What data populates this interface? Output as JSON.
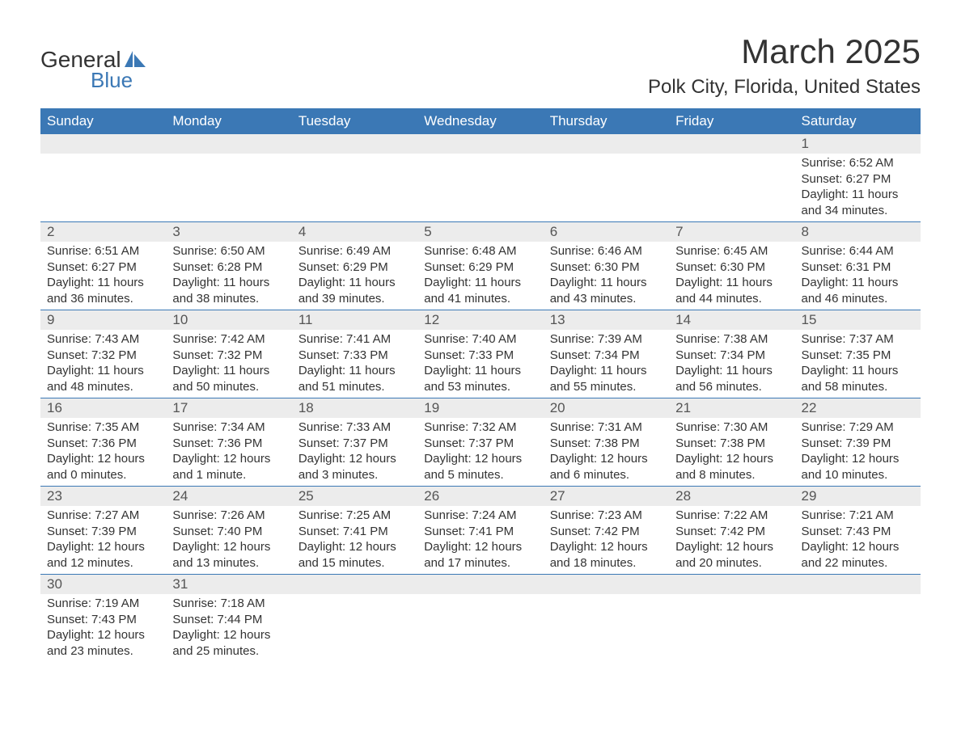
{
  "logo": {
    "text1": "General",
    "text2": "Blue",
    "sail_color": "#3b78b5"
  },
  "title": "March 2025",
  "location": "Polk City, Florida, United States",
  "colors": {
    "header_bg": "#3b78b5",
    "header_text": "#ffffff",
    "daynum_bg": "#ececec",
    "row_divider": "#3b78b5",
    "body_text": "#333333"
  },
  "font": {
    "family": "Arial",
    "header_size_pt": 13,
    "title_size_pt": 32,
    "cell_size_pt": 11
  },
  "weekdays": [
    "Sunday",
    "Monday",
    "Tuesday",
    "Wednesday",
    "Thursday",
    "Friday",
    "Saturday"
  ],
  "weeks": [
    {
      "nums": [
        "",
        "",
        "",
        "",
        "",
        "",
        "1"
      ],
      "cells": [
        "",
        "",
        "",
        "",
        "",
        "",
        "Sunrise: 6:52 AM\nSunset: 6:27 PM\nDaylight: 11 hours and 34 minutes."
      ]
    },
    {
      "nums": [
        "2",
        "3",
        "4",
        "5",
        "6",
        "7",
        "8"
      ],
      "cells": [
        "Sunrise: 6:51 AM\nSunset: 6:27 PM\nDaylight: 11 hours and 36 minutes.",
        "Sunrise: 6:50 AM\nSunset: 6:28 PM\nDaylight: 11 hours and 38 minutes.",
        "Sunrise: 6:49 AM\nSunset: 6:29 PM\nDaylight: 11 hours and 39 minutes.",
        "Sunrise: 6:48 AM\nSunset: 6:29 PM\nDaylight: 11 hours and 41 minutes.",
        "Sunrise: 6:46 AM\nSunset: 6:30 PM\nDaylight: 11 hours and 43 minutes.",
        "Sunrise: 6:45 AM\nSunset: 6:30 PM\nDaylight: 11 hours and 44 minutes.",
        "Sunrise: 6:44 AM\nSunset: 6:31 PM\nDaylight: 11 hours and 46 minutes."
      ]
    },
    {
      "nums": [
        "9",
        "10",
        "11",
        "12",
        "13",
        "14",
        "15"
      ],
      "cells": [
        "Sunrise: 7:43 AM\nSunset: 7:32 PM\nDaylight: 11 hours and 48 minutes.",
        "Sunrise: 7:42 AM\nSunset: 7:32 PM\nDaylight: 11 hours and 50 minutes.",
        "Sunrise: 7:41 AM\nSunset: 7:33 PM\nDaylight: 11 hours and 51 minutes.",
        "Sunrise: 7:40 AM\nSunset: 7:33 PM\nDaylight: 11 hours and 53 minutes.",
        "Sunrise: 7:39 AM\nSunset: 7:34 PM\nDaylight: 11 hours and 55 minutes.",
        "Sunrise: 7:38 AM\nSunset: 7:34 PM\nDaylight: 11 hours and 56 minutes.",
        "Sunrise: 7:37 AM\nSunset: 7:35 PM\nDaylight: 11 hours and 58 minutes."
      ]
    },
    {
      "nums": [
        "16",
        "17",
        "18",
        "19",
        "20",
        "21",
        "22"
      ],
      "cells": [
        "Sunrise: 7:35 AM\nSunset: 7:36 PM\nDaylight: 12 hours and 0 minutes.",
        "Sunrise: 7:34 AM\nSunset: 7:36 PM\nDaylight: 12 hours and 1 minute.",
        "Sunrise: 7:33 AM\nSunset: 7:37 PM\nDaylight: 12 hours and 3 minutes.",
        "Sunrise: 7:32 AM\nSunset: 7:37 PM\nDaylight: 12 hours and 5 minutes.",
        "Sunrise: 7:31 AM\nSunset: 7:38 PM\nDaylight: 12 hours and 6 minutes.",
        "Sunrise: 7:30 AM\nSunset: 7:38 PM\nDaylight: 12 hours and 8 minutes.",
        "Sunrise: 7:29 AM\nSunset: 7:39 PM\nDaylight: 12 hours and 10 minutes."
      ]
    },
    {
      "nums": [
        "23",
        "24",
        "25",
        "26",
        "27",
        "28",
        "29"
      ],
      "cells": [
        "Sunrise: 7:27 AM\nSunset: 7:39 PM\nDaylight: 12 hours and 12 minutes.",
        "Sunrise: 7:26 AM\nSunset: 7:40 PM\nDaylight: 12 hours and 13 minutes.",
        "Sunrise: 7:25 AM\nSunset: 7:41 PM\nDaylight: 12 hours and 15 minutes.",
        "Sunrise: 7:24 AM\nSunset: 7:41 PM\nDaylight: 12 hours and 17 minutes.",
        "Sunrise: 7:23 AM\nSunset: 7:42 PM\nDaylight: 12 hours and 18 minutes.",
        "Sunrise: 7:22 AM\nSunset: 7:42 PM\nDaylight: 12 hours and 20 minutes.",
        "Sunrise: 7:21 AM\nSunset: 7:43 PM\nDaylight: 12 hours and 22 minutes."
      ]
    },
    {
      "nums": [
        "30",
        "31",
        "",
        "",
        "",
        "",
        ""
      ],
      "cells": [
        "Sunrise: 7:19 AM\nSunset: 7:43 PM\nDaylight: 12 hours and 23 minutes.",
        "Sunrise: 7:18 AM\nSunset: 7:44 PM\nDaylight: 12 hours and 25 minutes.",
        "",
        "",
        "",
        "",
        ""
      ]
    }
  ]
}
